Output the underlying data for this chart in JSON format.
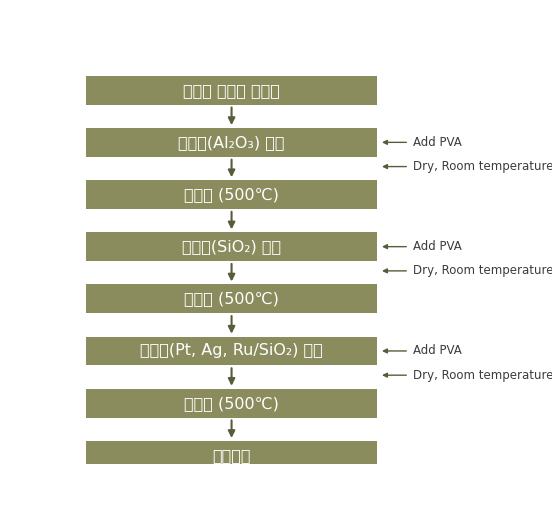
{
  "background_color": "#ffffff",
  "box_color": "#8b8c5e",
  "text_color": "#ffffff",
  "arrow_color": "#5a5a3c",
  "side_text_color": "#3c3c3c",
  "figsize": [
    5.52,
    5.21
  ],
  "dpi": 100,
  "boxes": [
    {
      "label": "다공성 세라믹 지지체",
      "has_right_annotation": false,
      "has_dry_annotation": false
    },
    {
      "label": "중간층(Al₂O₃) 코팅",
      "has_right_annotation": true,
      "has_dry_annotation": true
    },
    {
      "label": "열처리 (500℃)",
      "has_right_annotation": false,
      "has_dry_annotation": false
    },
    {
      "label": "중간층(SiO₂) 코팅",
      "has_right_annotation": true,
      "has_dry_annotation": true
    },
    {
      "label": "열처리 (500℃)",
      "has_right_annotation": false,
      "has_dry_annotation": false
    },
    {
      "label": "촉매층(Pt, Ag, Ru/SiO₂) 코팅",
      "has_right_annotation": true,
      "has_dry_annotation": true
    },
    {
      "label": "열처리 (500℃)",
      "has_right_annotation": false,
      "has_dry_annotation": false
    },
    {
      "label": "특성평가",
      "has_right_annotation": false,
      "has_dry_annotation": false
    }
  ],
  "annotation_add_pva_text": "Add PVA",
  "annotation_dry_text": "Dry, Room temperature"
}
